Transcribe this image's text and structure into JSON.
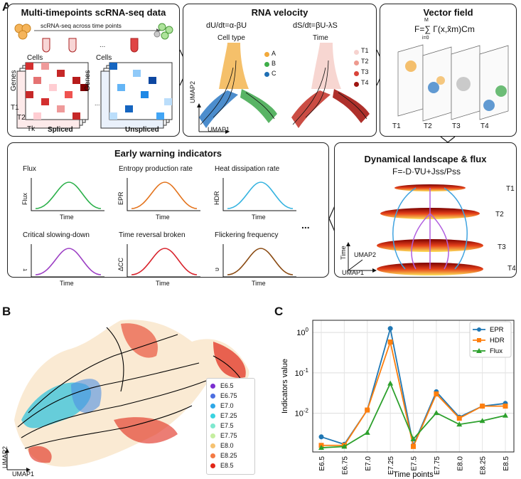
{
  "panel_letters": {
    "a": "A",
    "b": "B",
    "c": "C"
  },
  "panel1": {
    "title": "Multi-timepoints scRNA-seq data",
    "arrow_label": "scRNA-seq across time points",
    "cells": "Cells",
    "genes": "Genes",
    "t1": "T1",
    "t2": "T2",
    "tk": "Tk",
    "spliced": "Spliced",
    "unspliced": "Unspliced"
  },
  "panel2": {
    "title": "RNA velocity",
    "eq1": "dU/dt=α-βU",
    "eq2": "dS/dt=βU-λS",
    "cell_type": "Cell type",
    "time": "Time",
    "legend_type": [
      {
        "label": "A",
        "color": "#f2a93b"
      },
      {
        "label": "B",
        "color": "#3fae49"
      },
      {
        "label": "C",
        "color": "#1f6fb4"
      }
    ],
    "legend_time": [
      {
        "label": "T1",
        "color": "#f6d3cf"
      },
      {
        "label": "T2",
        "color": "#ee9a8f"
      },
      {
        "label": "T3",
        "color": "#d9443a"
      },
      {
        "label": "T4",
        "color": "#9e1410"
      }
    ],
    "umap1": "UMAP1",
    "umap2": "UMAP2"
  },
  "panel3": {
    "title": "Vector field",
    "eq": "F=∑ Γ(x,x̃m)Cm",
    "sum_top": "M",
    "sum_bot": "i=0",
    "t_labels": [
      "T1",
      "T2",
      "T3",
      "T4"
    ]
  },
  "panel4": {
    "title": "Early warning indicators",
    "plots": [
      {
        "title": "Flux",
        "ylabel": "Flux",
        "xlabel": "Time",
        "color": "#2bb04a"
      },
      {
        "title": "Entropy production rate",
        "ylabel": "EPR",
        "xlabel": "Time",
        "color": "#e3731c"
      },
      {
        "title": "Heat dissipation rate",
        "ylabel": "HDR",
        "xlabel": "Time",
        "color": "#35b3e0"
      },
      {
        "title": "Critical slowing-down",
        "ylabel": "τ",
        "xlabel": "Time",
        "color": "#9c3fc4"
      },
      {
        "title": "Time reversal broken",
        "ylabel": "ΔCC",
        "xlabel": "Time",
        "color": "#d8222b"
      },
      {
        "title": "Flickering frequency",
        "ylabel": "υ",
        "xlabel": "Time",
        "color": "#8a4a12"
      }
    ],
    "ellipsis": "..."
  },
  "panel5": {
    "title": "Dynamical landscape & flux",
    "eq": "F=-D·∇U+Jss/Pss",
    "t_labels": [
      "T1",
      "T2",
      "T3",
      "T4"
    ],
    "time": "Time",
    "umap1": "UMAP1",
    "umap2": "UMAP2"
  },
  "panelB": {
    "umap1": "UMAP1",
    "umap2": "UMAP2",
    "legend": [
      {
        "label": "E6.5",
        "color": "#7b2fd0"
      },
      {
        "label": "E6.75",
        "color": "#4d6fe0"
      },
      {
        "label": "E7.0",
        "color": "#2ea7e6"
      },
      {
        "label": "E7.25",
        "color": "#39d3e0"
      },
      {
        "label": "E7.5",
        "color": "#7fe8cf"
      },
      {
        "label": "E7.75",
        "color": "#c5eea0"
      },
      {
        "label": "E8.0",
        "color": "#f6c271"
      },
      {
        "label": "E8.25",
        "color": "#f37a44"
      },
      {
        "label": "E8.5",
        "color": "#e02617"
      }
    ]
  },
  "chart_data": {
    "type": "line",
    "yscale": "log",
    "categories": [
      "E6.5",
      "E6.75",
      "E7.0",
      "E7.25",
      "E7.5",
      "E7.75",
      "E8.0",
      "E8.25",
      "E8.5"
    ],
    "series": [
      {
        "name": "EPR",
        "color": "#1f77b4",
        "marker": "circle",
        "values": [
          0.0026,
          0.0017,
          0.012,
          1.25,
          0.0016,
          0.034,
          0.008,
          0.015,
          0.0175
        ]
      },
      {
        "name": "HDR",
        "color": "#ff7f0e",
        "marker": "square",
        "values": [
          0.0016,
          0.0016,
          0.012,
          0.58,
          0.0015,
          0.03,
          0.0075,
          0.015,
          0.015
        ]
      },
      {
        "name": "Flux",
        "color": "#2ca02c",
        "marker": "triangle",
        "values": [
          0.0014,
          0.0015,
          0.0033,
          0.055,
          0.0023,
          0.0102,
          0.0053,
          0.0065,
          0.0088
        ]
      }
    ],
    "ylabel": "Indicators value",
    "xlabel": "Time points",
    "yticks": [
      {
        "v": 1,
        "label": "10^0"
      },
      {
        "v": 0.1,
        "label": "10^-1"
      },
      {
        "v": 0.01,
        "label": "10^-2"
      }
    ],
    "ylim": [
      0.0011,
      2.0
    ],
    "legend_position": "top-right"
  }
}
